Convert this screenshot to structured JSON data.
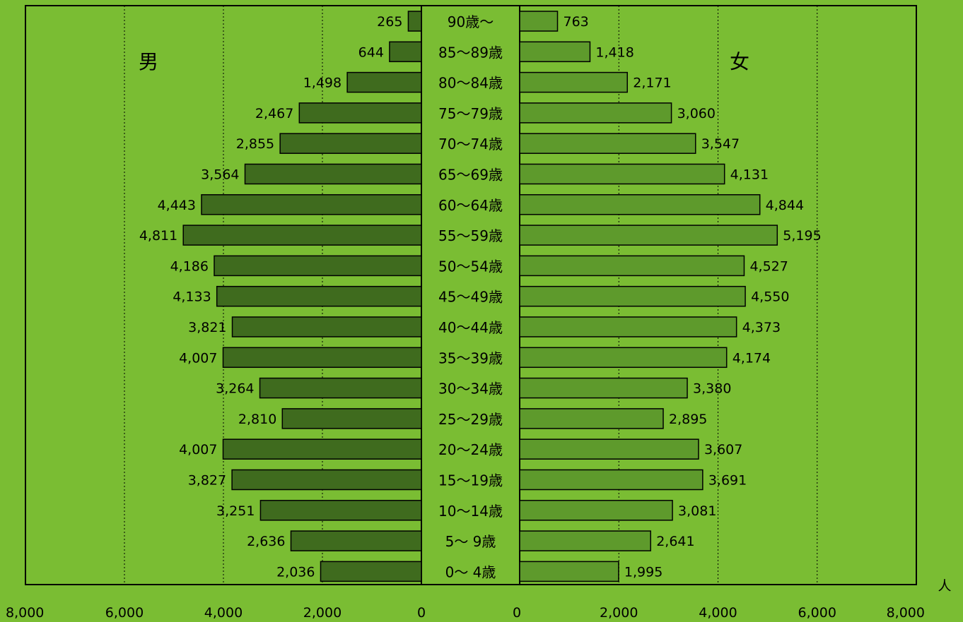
{
  "chart_data": {
    "type": "bar",
    "orientation": "horizontal",
    "layout": "population-pyramid",
    "categories": [
      "90歳～",
      "85～89歳",
      "80～84歳",
      "75～79歳",
      "70～74歳",
      "65～69歳",
      "60～64歳",
      "55～59歳",
      "50～54歳",
      "45～49歳",
      "40～44歳",
      "35～39歳",
      "30～34歳",
      "25～29歳",
      "20～24歳",
      "15～19歳",
      "10～14歳",
      "5～ 9歳",
      "0～ 4歳"
    ],
    "series": [
      {
        "name": "男",
        "side": "left",
        "color": "#3F6B1E",
        "values": [
          265,
          644,
          1498,
          2467,
          2855,
          3564,
          4443,
          4811,
          4186,
          4133,
          3821,
          4007,
          3264,
          2810,
          4007,
          3827,
          3251,
          2636,
          2036
        ],
        "labels": [
          "265",
          "644",
          "1,498",
          "2,467",
          "2,855",
          "3,564",
          "4,443",
          "4,811",
          "4,186",
          "4,133",
          "3,821",
          "4,007",
          "3,264",
          "2,810",
          "4,007",
          "3,827",
          "3,251",
          "2,636",
          "2,036"
        ]
      },
      {
        "name": "女",
        "side": "right",
        "color": "#5E9A2C",
        "values": [
          763,
          1418,
          2171,
          3060,
          3547,
          4131,
          4844,
          5195,
          4527,
          4550,
          4373,
          4174,
          3380,
          2895,
          3607,
          3691,
          3081,
          2641,
          1995
        ],
        "labels": [
          "763",
          "1,418",
          "2,171",
          "3,060",
          "3,547",
          "4,131",
          "4,844",
          "5,195",
          "4,527",
          "4,550",
          "4,373",
          "4,174",
          "3,380",
          "2,895",
          "3,607",
          "3,691",
          "3,081",
          "2,641",
          "1,995"
        ]
      }
    ],
    "xlim": [
      0,
      8000
    ],
    "xticks": [
      0,
      2000,
      4000,
      6000,
      8000
    ],
    "xtick_labels": [
      "0",
      "2,000",
      "4,000",
      "6,000",
      "8,000"
    ],
    "unit": "人",
    "grid": "vertical-dotted",
    "background_color": "#7ABD33"
  }
}
